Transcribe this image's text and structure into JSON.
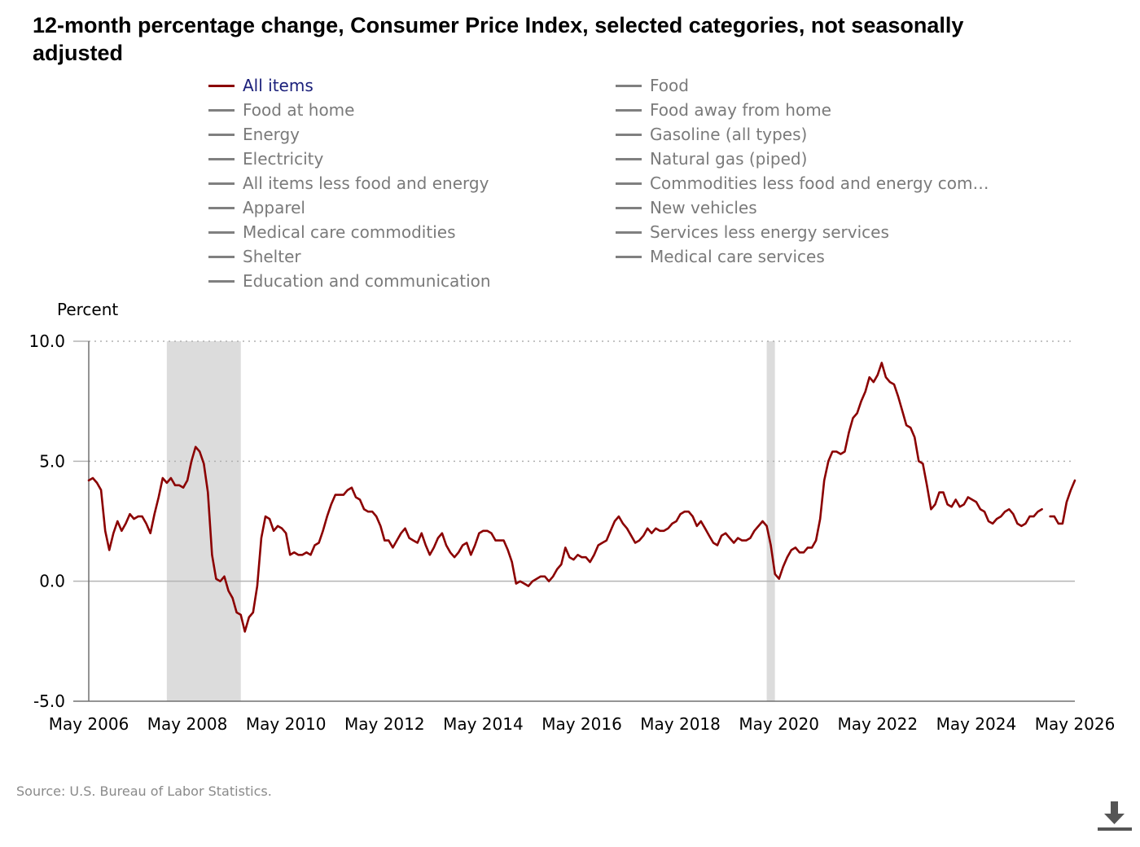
{
  "title": "12-month percentage change, Consumer Price Index, selected categories, not seasonally adjusted",
  "legend": {
    "items": [
      {
        "label": "All items",
        "active": true
      },
      {
        "label": "Food at home",
        "active": false
      },
      {
        "label": "Energy",
        "active": false
      },
      {
        "label": "Electricity",
        "active": false
      },
      {
        "label": "All items less food and energy",
        "active": false
      },
      {
        "label": "Apparel",
        "active": false
      },
      {
        "label": "Medical care commodities",
        "active": false
      },
      {
        "label": "Shelter",
        "active": false
      },
      {
        "label": "Education and communication",
        "active": false
      },
      {
        "label": "Food",
        "active": false
      },
      {
        "label": "Food away from home",
        "active": false
      },
      {
        "label": "Gasoline (all types)",
        "active": false
      },
      {
        "label": "Natural gas (piped)",
        "active": false
      },
      {
        "label": "Commodities less food and energy com…",
        "active": false
      },
      {
        "label": "New vehicles",
        "active": false
      },
      {
        "label": "Services less energy services",
        "active": false
      },
      {
        "label": "Medical care services",
        "active": false
      }
    ]
  },
  "source": "Source: U.S. Bureau of Labor Statistics.",
  "download_icon": "download-icon",
  "colors": {
    "all_items": "#8b0000",
    "recession": "#dcdcdc",
    "legend_inactive": "#808080",
    "legend_active_text": "#1a1f7a"
  },
  "chart_data": {
    "type": "line",
    "ylabel": "Percent",
    "xlabel": "",
    "ylim": [
      -5,
      10
    ],
    "yticks": [
      "10.0",
      "5.0",
      "0.0",
      "-5.0"
    ],
    "ytick_values": [
      10,
      5,
      0,
      -5
    ],
    "xlim": [
      "2006-05",
      "2026-05"
    ],
    "xticks": [
      "May 2006",
      "May 2008",
      "May 2010",
      "May 2012",
      "May 2014",
      "May 2016",
      "May 2018",
      "May 2020",
      "May 2022",
      "May 2024",
      "May 2026"
    ],
    "xtick_dates": [
      "2006-05",
      "2008-05",
      "2010-05",
      "2012-05",
      "2014-05",
      "2016-05",
      "2018-05",
      "2020-05",
      "2022-05",
      "2024-05",
      "2026-05"
    ],
    "grid": "dotted horizontal at 5.0 and 10.0",
    "recession_shading": [
      [
        "2007-12",
        "2009-06"
      ],
      [
        "2020-02",
        "2020-04"
      ]
    ],
    "series": [
      {
        "name": "All items",
        "points": [
          [
            "2006-05",
            4.2
          ],
          [
            "2006-06",
            4.3
          ],
          [
            "2006-07",
            4.1
          ],
          [
            "2006-08",
            3.8
          ],
          [
            "2006-09",
            2.1
          ],
          [
            "2006-10",
            1.3
          ],
          [
            "2006-11",
            2.0
          ],
          [
            "2006-12",
            2.5
          ],
          [
            "2007-01",
            2.1
          ],
          [
            "2007-02",
            2.4
          ],
          [
            "2007-03",
            2.8
          ],
          [
            "2007-04",
            2.6
          ],
          [
            "2007-05",
            2.7
          ],
          [
            "2007-06",
            2.7
          ],
          [
            "2007-07",
            2.4
          ],
          [
            "2007-08",
            2.0
          ],
          [
            "2007-09",
            2.8
          ],
          [
            "2007-10",
            3.5
          ],
          [
            "2007-11",
            4.3
          ],
          [
            "2007-12",
            4.1
          ],
          [
            "2008-01",
            4.3
          ],
          [
            "2008-02",
            4.0
          ],
          [
            "2008-03",
            4.0
          ],
          [
            "2008-04",
            3.9
          ],
          [
            "2008-05",
            4.2
          ],
          [
            "2008-06",
            5.0
          ],
          [
            "2008-07",
            5.6
          ],
          [
            "2008-08",
            5.4
          ],
          [
            "2008-09",
            4.9
          ],
          [
            "2008-10",
            3.7
          ],
          [
            "2008-11",
            1.1
          ],
          [
            "2008-12",
            0.1
          ],
          [
            "2009-01",
            0.0
          ],
          [
            "2009-02",
            0.2
          ],
          [
            "2009-03",
            -0.4
          ],
          [
            "2009-04",
            -0.7
          ],
          [
            "2009-05",
            -1.3
          ],
          [
            "2009-06",
            -1.4
          ],
          [
            "2009-07",
            -2.1
          ],
          [
            "2009-08",
            -1.5
          ],
          [
            "2009-09",
            -1.3
          ],
          [
            "2009-10",
            -0.2
          ],
          [
            "2009-11",
            1.8
          ],
          [
            "2009-12",
            2.7
          ],
          [
            "2010-01",
            2.6
          ],
          [
            "2010-02",
            2.1
          ],
          [
            "2010-03",
            2.3
          ],
          [
            "2010-04",
            2.2
          ],
          [
            "2010-05",
            2.0
          ],
          [
            "2010-06",
            1.1
          ],
          [
            "2010-07",
            1.2
          ],
          [
            "2010-08",
            1.1
          ],
          [
            "2010-09",
            1.1
          ],
          [
            "2010-10",
            1.2
          ],
          [
            "2010-11",
            1.1
          ],
          [
            "2010-12",
            1.5
          ],
          [
            "2011-01",
            1.6
          ],
          [
            "2011-02",
            2.1
          ],
          [
            "2011-03",
            2.7
          ],
          [
            "2011-04",
            3.2
          ],
          [
            "2011-05",
            3.6
          ],
          [
            "2011-06",
            3.6
          ],
          [
            "2011-07",
            3.6
          ],
          [
            "2011-08",
            3.8
          ],
          [
            "2011-09",
            3.9
          ],
          [
            "2011-10",
            3.5
          ],
          [
            "2011-11",
            3.4
          ],
          [
            "2011-12",
            3.0
          ],
          [
            "2012-01",
            2.9
          ],
          [
            "2012-02",
            2.9
          ],
          [
            "2012-03",
            2.7
          ],
          [
            "2012-04",
            2.3
          ],
          [
            "2012-05",
            1.7
          ],
          [
            "2012-06",
            1.7
          ],
          [
            "2012-07",
            1.4
          ],
          [
            "2012-08",
            1.7
          ],
          [
            "2012-09",
            2.0
          ],
          [
            "2012-10",
            2.2
          ],
          [
            "2012-11",
            1.8
          ],
          [
            "2012-12",
            1.7
          ],
          [
            "2013-01",
            1.6
          ],
          [
            "2013-02",
            2.0
          ],
          [
            "2013-03",
            1.5
          ],
          [
            "2013-04",
            1.1
          ],
          [
            "2013-05",
            1.4
          ],
          [
            "2013-06",
            1.8
          ],
          [
            "2013-07",
            2.0
          ],
          [
            "2013-08",
            1.5
          ],
          [
            "2013-09",
            1.2
          ],
          [
            "2013-10",
            1.0
          ],
          [
            "2013-11",
            1.2
          ],
          [
            "2013-12",
            1.5
          ],
          [
            "2014-01",
            1.6
          ],
          [
            "2014-02",
            1.1
          ],
          [
            "2014-03",
            1.5
          ],
          [
            "2014-04",
            2.0
          ],
          [
            "2014-05",
            2.1
          ],
          [
            "2014-06",
            2.1
          ],
          [
            "2014-07",
            2.0
          ],
          [
            "2014-08",
            1.7
          ],
          [
            "2014-09",
            1.7
          ],
          [
            "2014-10",
            1.7
          ],
          [
            "2014-11",
            1.3
          ],
          [
            "2014-12",
            0.8
          ],
          [
            "2015-01",
            -0.1
          ],
          [
            "2015-02",
            0.0
          ],
          [
            "2015-03",
            -0.1
          ],
          [
            "2015-04",
            -0.2
          ],
          [
            "2015-05",
            0.0
          ],
          [
            "2015-06",
            0.1
          ],
          [
            "2015-07",
            0.2
          ],
          [
            "2015-08",
            0.2
          ],
          [
            "2015-09",
            0.0
          ],
          [
            "2015-10",
            0.2
          ],
          [
            "2015-11",
            0.5
          ],
          [
            "2015-12",
            0.7
          ],
          [
            "2016-01",
            1.4
          ],
          [
            "2016-02",
            1.0
          ],
          [
            "2016-03",
            0.9
          ],
          [
            "2016-04",
            1.1
          ],
          [
            "2016-05",
            1.0
          ],
          [
            "2016-06",
            1.0
          ],
          [
            "2016-07",
            0.8
          ],
          [
            "2016-08",
            1.1
          ],
          [
            "2016-09",
            1.5
          ],
          [
            "2016-10",
            1.6
          ],
          [
            "2016-11",
            1.7
          ],
          [
            "2016-12",
            2.1
          ],
          [
            "2017-01",
            2.5
          ],
          [
            "2017-02",
            2.7
          ],
          [
            "2017-03",
            2.4
          ],
          [
            "2017-04",
            2.2
          ],
          [
            "2017-05",
            1.9
          ],
          [
            "2017-06",
            1.6
          ],
          [
            "2017-07",
            1.7
          ],
          [
            "2017-08",
            1.9
          ],
          [
            "2017-09",
            2.2
          ],
          [
            "2017-10",
            2.0
          ],
          [
            "2017-11",
            2.2
          ],
          [
            "2017-12",
            2.1
          ],
          [
            "2018-01",
            2.1
          ],
          [
            "2018-02",
            2.2
          ],
          [
            "2018-03",
            2.4
          ],
          [
            "2018-04",
            2.5
          ],
          [
            "2018-05",
            2.8
          ],
          [
            "2018-06",
            2.9
          ],
          [
            "2018-07",
            2.9
          ],
          [
            "2018-08",
            2.7
          ],
          [
            "2018-09",
            2.3
          ],
          [
            "2018-10",
            2.5
          ],
          [
            "2018-11",
            2.2
          ],
          [
            "2018-12",
            1.9
          ],
          [
            "2019-01",
            1.6
          ],
          [
            "2019-02",
            1.5
          ],
          [
            "2019-03",
            1.9
          ],
          [
            "2019-04",
            2.0
          ],
          [
            "2019-05",
            1.8
          ],
          [
            "2019-06",
            1.6
          ],
          [
            "2019-07",
            1.8
          ],
          [
            "2019-08",
            1.7
          ],
          [
            "2019-09",
            1.7
          ],
          [
            "2019-10",
            1.8
          ],
          [
            "2019-11",
            2.1
          ],
          [
            "2019-12",
            2.3
          ],
          [
            "2020-01",
            2.5
          ],
          [
            "2020-02",
            2.3
          ],
          [
            "2020-03",
            1.5
          ],
          [
            "2020-04",
            0.3
          ],
          [
            "2020-05",
            0.1
          ],
          [
            "2020-06",
            0.6
          ],
          [
            "2020-07",
            1.0
          ],
          [
            "2020-08",
            1.3
          ],
          [
            "2020-09",
            1.4
          ],
          [
            "2020-10",
            1.2
          ],
          [
            "2020-11",
            1.2
          ],
          [
            "2020-12",
            1.4
          ],
          [
            "2021-01",
            1.4
          ],
          [
            "2021-02",
            1.7
          ],
          [
            "2021-03",
            2.6
          ],
          [
            "2021-04",
            4.2
          ],
          [
            "2021-05",
            5.0
          ],
          [
            "2021-06",
            5.4
          ],
          [
            "2021-07",
            5.4
          ],
          [
            "2021-08",
            5.3
          ],
          [
            "2021-09",
            5.4
          ],
          [
            "2021-10",
            6.2
          ],
          [
            "2021-11",
            6.8
          ],
          [
            "2021-12",
            7.0
          ],
          [
            "2022-01",
            7.5
          ],
          [
            "2022-02",
            7.9
          ],
          [
            "2022-03",
            8.5
          ],
          [
            "2022-04",
            8.3
          ],
          [
            "2022-05",
            8.6
          ],
          [
            "2022-06",
            9.1
          ],
          [
            "2022-07",
            8.5
          ],
          [
            "2022-08",
            8.3
          ],
          [
            "2022-09",
            8.2
          ],
          [
            "2022-10",
            7.7
          ],
          [
            "2022-11",
            7.1
          ],
          [
            "2022-12",
            6.5
          ],
          [
            "2023-01",
            6.4
          ],
          [
            "2023-02",
            6.0
          ],
          [
            "2023-03",
            5.0
          ],
          [
            "2023-04",
            4.9
          ],
          [
            "2023-05",
            4.0
          ],
          [
            "2023-06",
            3.0
          ],
          [
            "2023-07",
            3.2
          ],
          [
            "2023-08",
            3.7
          ],
          [
            "2023-09",
            3.7
          ],
          [
            "2023-10",
            3.2
          ],
          [
            "2023-11",
            3.1
          ],
          [
            "2023-12",
            3.4
          ],
          [
            "2024-01",
            3.1
          ],
          [
            "2024-02",
            3.2
          ],
          [
            "2024-03",
            3.5
          ],
          [
            "2024-04",
            3.4
          ],
          [
            "2024-05",
            3.3
          ],
          [
            "2024-06",
            3.0
          ],
          [
            "2024-07",
            2.9
          ],
          [
            "2024-08",
            2.5
          ],
          [
            "2024-09",
            2.4
          ],
          [
            "2024-10",
            2.6
          ],
          [
            "2024-11",
            2.7
          ],
          [
            "2024-12",
            2.9
          ],
          [
            "2025-01",
            3.0
          ],
          [
            "2025-02",
            2.8
          ],
          [
            "2025-03",
            2.4
          ],
          [
            "2025-04",
            2.3
          ],
          [
            "2025-05",
            2.4
          ],
          [
            "2025-06",
            2.7
          ],
          [
            "2025-07",
            2.7
          ],
          [
            "2025-08",
            2.9
          ],
          [
            "2025-09",
            3.0
          ],
          null,
          [
            "2025-11",
            2.7
          ],
          [
            "2025-12",
            2.7
          ],
          [
            "2026-01",
            2.4
          ],
          [
            "2026-02",
            2.4
          ],
          [
            "2026-03",
            3.3
          ],
          [
            "2026-04",
            3.8
          ],
          [
            "2026-05",
            4.2
          ]
        ]
      }
    ]
  }
}
